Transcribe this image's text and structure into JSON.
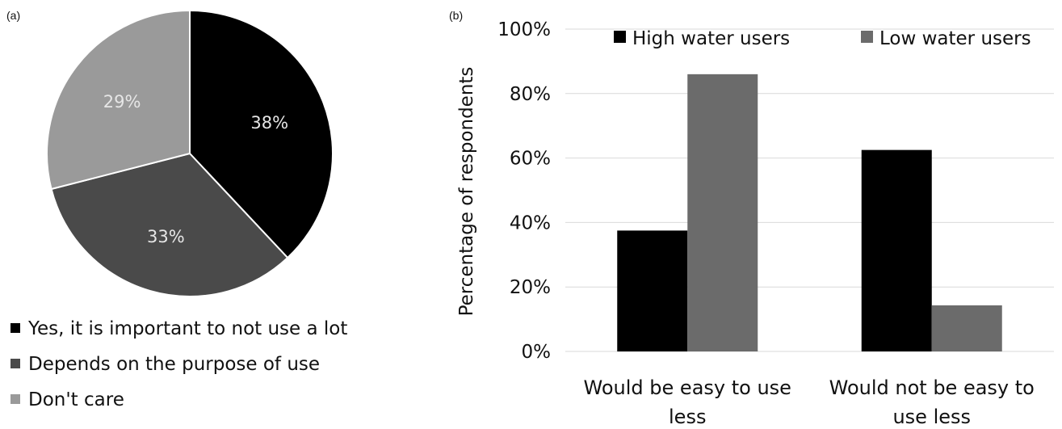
{
  "panel_labels": {
    "a": "(a)",
    "b": "(b)"
  },
  "chart_data": [
    {
      "type": "pie",
      "slices": [
        {
          "label": "Yes, it is important to not use a lot",
          "value": 38,
          "display": "38%",
          "color": "#000000"
        },
        {
          "label": "Depends on the purpose of use",
          "value": 33,
          "display": "33%",
          "color": "#4a4a4a"
        },
        {
          "label": "Don't care",
          "value": 29,
          "display": "29%",
          "color": "#9a9a9a"
        }
      ],
      "legend_position": "bottom"
    },
    {
      "type": "bar",
      "categories": [
        "Would be easy to use less",
        "Would not be easy to use less"
      ],
      "category_lines": [
        [
          "Would be easy to use",
          "less"
        ],
        [
          "Would not be easy to",
          "use less"
        ]
      ],
      "series": [
        {
          "name": "High water users",
          "values": [
            37.5,
            62.5
          ],
          "color": "#000000"
        },
        {
          "name": "Low water users",
          "values": [
            86,
            14.3
          ],
          "color": "#6b6b6b"
        }
      ],
      "ylabel": "Percentage of respondents",
      "yticks": [
        "0%",
        "20%",
        "40%",
        "60%",
        "80%",
        "100%"
      ],
      "ylim": [
        0,
        100
      ],
      "grid": true,
      "legend_position": "top"
    }
  ]
}
